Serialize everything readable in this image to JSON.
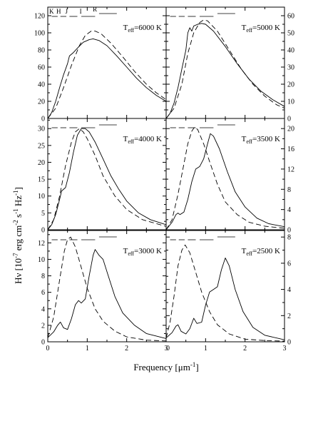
{
  "figure": {
    "ylabel_main": "Hν [10",
    "ylabel_exp1": "-7",
    "ylabel_units": " erg cm",
    "ylabel_exp2": "-2",
    "ylabel_s": " s",
    "ylabel_exp3": "-1",
    "ylabel_hz": " Hz",
    "ylabel_exp4": "-1",
    "ylabel_close": "]",
    "xlabel_main": "Frequency [μm",
    "xlabel_exp": "-1",
    "xlabel_close": "]",
    "band_labels": {
      "k": "K",
      "h": "H",
      "j": "J",
      "i": "I",
      "r": "R"
    }
  },
  "chart_data": [
    {
      "type": "line",
      "teff": "6000 K",
      "y_side": "left",
      "ylim": [
        0,
        130
      ],
      "yticks": [
        0,
        20,
        40,
        60,
        80,
        100,
        120
      ],
      "xlim": [
        0,
        3
      ],
      "xticks": [
        0,
        1,
        2,
        3
      ],
      "show_band_labels": true,
      "band_bars": [
        [
          0.38,
          0.95
        ],
        [
          1.05,
          1.55
        ]
      ],
      "series": [
        {
          "style": "solid",
          "points": [
            [
              0,
              0
            ],
            [
              0.1,
              7
            ],
            [
              0.2,
              20
            ],
            [
              0.3,
              36
            ],
            [
              0.4,
              51
            ],
            [
              0.5,
              64
            ],
            [
              0.55,
              73
            ],
            [
              0.65,
              77
            ],
            [
              0.75,
              82
            ],
            [
              0.9,
              89
            ],
            [
              1.05,
              92
            ],
            [
              1.15,
              93
            ],
            [
              1.3,
              91
            ],
            [
              1.5,
              85
            ],
            [
              1.75,
              73
            ],
            [
              2.0,
              60
            ],
            [
              2.25,
              47
            ],
            [
              2.5,
              36
            ],
            [
              2.75,
              27
            ],
            [
              3.0,
              20
            ]
          ]
        },
        {
          "style": "dashed",
          "points": [
            [
              0,
              0
            ],
            [
              0.2,
              12
            ],
            [
              0.4,
              36
            ],
            [
              0.6,
              62
            ],
            [
              0.8,
              85
            ],
            [
              0.95,
              97
            ],
            [
              1.1,
              102
            ],
            [
              1.2,
              102
            ],
            [
              1.35,
              99
            ],
            [
              1.6,
              88
            ],
            [
              1.9,
              72
            ],
            [
              2.2,
              55
            ],
            [
              2.5,
              40
            ],
            [
              2.75,
              30
            ],
            [
              3.0,
              22
            ]
          ]
        }
      ]
    },
    {
      "type": "line",
      "teff": "5000 K",
      "y_side": "right",
      "ylim": [
        0,
        65
      ],
      "yticks": [
        0,
        10,
        20,
        30,
        40,
        50,
        60
      ],
      "xlim": [
        0,
        3
      ],
      "xticks": [
        0,
        1,
        2,
        3
      ],
      "show_band_labels": false,
      "band_bars": [
        [
          0.38,
          0.95
        ],
        [
          1.05,
          1.55
        ]
      ],
      "series": [
        {
          "style": "solid",
          "points": [
            [
              0,
              0
            ],
            [
              0.1,
              3
            ],
            [
              0.2,
              9
            ],
            [
              0.3,
              18
            ],
            [
              0.4,
              29
            ],
            [
              0.5,
              40
            ],
            [
              0.55,
              50
            ],
            [
              0.6,
              53
            ],
            [
              0.65,
              51
            ],
            [
              0.7,
              54
            ],
            [
              0.8,
              55
            ],
            [
              0.9,
              55.5
            ],
            [
              1.0,
              55
            ],
            [
              1.2,
              51
            ],
            [
              1.5,
              42
            ],
            [
              1.8,
              32
            ],
            [
              2.1,
              23
            ],
            [
              2.4,
              16
            ],
            [
              2.7,
              11
            ],
            [
              3.0,
              7
            ]
          ]
        },
        {
          "style": "dashed",
          "points": [
            [
              0,
              0
            ],
            [
              0.2,
              6
            ],
            [
              0.4,
              20
            ],
            [
              0.55,
              38
            ],
            [
              0.7,
              50
            ],
            [
              0.85,
              56
            ],
            [
              0.95,
              57.5
            ],
            [
              1.05,
              57
            ],
            [
              1.3,
              51
            ],
            [
              1.6,
              40
            ],
            [
              1.9,
              29
            ],
            [
              2.2,
              20
            ],
            [
              2.5,
              13
            ],
            [
              2.8,
              8
            ],
            [
              3.0,
              6
            ]
          ]
        }
      ]
    },
    {
      "type": "line",
      "teff": "4000 K",
      "y_side": "left",
      "ylim": [
        0,
        33
      ],
      "yticks": [
        0,
        5,
        10,
        15,
        20,
        25,
        30
      ],
      "xlim": [
        0,
        3
      ],
      "xticks": [
        0,
        1,
        2,
        3
      ],
      "show_band_labels": false,
      "band_bars": [
        [
          0.38,
          0.95
        ],
        [
          1.05,
          1.55
        ]
      ],
      "series": [
        {
          "style": "solid",
          "points": [
            [
              0,
              0
            ],
            [
              0.1,
              1.5
            ],
            [
              0.2,
              4.5
            ],
            [
              0.3,
              9
            ],
            [
              0.35,
              11.5
            ],
            [
              0.45,
              12.5
            ],
            [
              0.55,
              17
            ],
            [
              0.65,
              23
            ],
            [
              0.75,
              28
            ],
            [
              0.85,
              30
            ],
            [
              0.95,
              30
            ],
            [
              1.05,
              29
            ],
            [
              1.2,
              26
            ],
            [
              1.4,
              21
            ],
            [
              1.6,
              16
            ],
            [
              1.8,
              12
            ],
            [
              2.0,
              8.5
            ],
            [
              2.3,
              5
            ],
            [
              2.6,
              3
            ],
            [
              3.0,
              1.5
            ]
          ]
        },
        {
          "style": "dashed",
          "points": [
            [
              0,
              0
            ],
            [
              0.15,
              3
            ],
            [
              0.3,
              10
            ],
            [
              0.45,
              19
            ],
            [
              0.6,
              26
            ],
            [
              0.7,
              29
            ],
            [
              0.8,
              30
            ],
            [
              0.9,
              29
            ],
            [
              1.0,
              27
            ],
            [
              1.2,
              22
            ],
            [
              1.4,
              16
            ],
            [
              1.7,
              10
            ],
            [
              2.0,
              6
            ],
            [
              2.4,
              3
            ],
            [
              3.0,
              1
            ]
          ]
        }
      ]
    },
    {
      "type": "line",
      "teff": "3500 K",
      "y_side": "right",
      "ylim": [
        0,
        22
      ],
      "yticks": [
        0,
        4,
        8,
        12,
        16,
        20
      ],
      "xlim": [
        0,
        3
      ],
      "xticks": [
        0,
        1,
        2,
        3
      ],
      "show_band_labels": false,
      "band_bars": [
        [
          0.38,
          0.95
        ],
        [
          1.05,
          1.55
        ]
      ],
      "series": [
        {
          "style": "solid",
          "points": [
            [
              0,
              0
            ],
            [
              0.15,
              1.5
            ],
            [
              0.25,
              3
            ],
            [
              0.3,
              3.3
            ],
            [
              0.35,
              3
            ],
            [
              0.45,
              3.5
            ],
            [
              0.55,
              6
            ],
            [
              0.65,
              9.5
            ],
            [
              0.75,
              12
            ],
            [
              0.85,
              12.5
            ],
            [
              0.95,
              14
            ],
            [
              1.05,
              17
            ],
            [
              1.12,
              19
            ],
            [
              1.2,
              18.5
            ],
            [
              1.35,
              16
            ],
            [
              1.55,
              11.5
            ],
            [
              1.75,
              7.5
            ],
            [
              2.0,
              4.5
            ],
            [
              2.3,
              2.3
            ],
            [
              2.6,
              1.2
            ],
            [
              3.0,
              0.6
            ]
          ]
        },
        {
          "style": "dashed",
          "points": [
            [
              0,
              0
            ],
            [
              0.15,
              2
            ],
            [
              0.3,
              7
            ],
            [
              0.45,
              13
            ],
            [
              0.55,
              17
            ],
            [
              0.65,
              19.5
            ],
            [
              0.72,
              20.3
            ],
            [
              0.8,
              19.8
            ],
            [
              0.95,
              17
            ],
            [
              1.1,
              13.5
            ],
            [
              1.3,
              9
            ],
            [
              1.5,
              5.5
            ],
            [
              1.8,
              3
            ],
            [
              2.1,
              1.5
            ],
            [
              2.5,
              0.7
            ],
            [
              3.0,
              0.3
            ]
          ]
        }
      ]
    },
    {
      "type": "line",
      "teff": "3000 K",
      "y_side": "left",
      "ylim": [
        0,
        13.5
      ],
      "yticks": [
        0,
        2,
        4,
        6,
        8,
        10,
        12
      ],
      "xlim": [
        0,
        3
      ],
      "xticks": [
        0,
        1,
        2,
        3
      ],
      "show_band_labels": false,
      "band_bars": [
        [
          0.38,
          0.95
        ],
        [
          1.05,
          1.55
        ]
      ],
      "series": [
        {
          "style": "solid",
          "points": [
            [
              0,
              0.5
            ],
            [
              0.15,
              1.2
            ],
            [
              0.25,
              2
            ],
            [
              0.32,
              2.4
            ],
            [
              0.4,
              1.7
            ],
            [
              0.5,
              1.5
            ],
            [
              0.6,
              2.8
            ],
            [
              0.7,
              4.5
            ],
            [
              0.78,
              5
            ],
            [
              0.85,
              4.7
            ],
            [
              0.95,
              5.2
            ],
            [
              1.05,
              8
            ],
            [
              1.15,
              10.5
            ],
            [
              1.2,
              11.2
            ],
            [
              1.3,
              10.5
            ],
            [
              1.4,
              10
            ],
            [
              1.5,
              8.5
            ],
            [
              1.7,
              5.5
            ],
            [
              1.9,
              3.5
            ],
            [
              2.2,
              2
            ],
            [
              2.5,
              1
            ],
            [
              3.0,
              0.4
            ]
          ]
        },
        {
          "style": "dashed",
          "points": [
            [
              0,
              0.5
            ],
            [
              0.15,
              3
            ],
            [
              0.3,
              7.5
            ],
            [
              0.42,
              11
            ],
            [
              0.5,
              12.4
            ],
            [
              0.58,
              12.7
            ],
            [
              0.7,
              11.5
            ],
            [
              0.85,
              9
            ],
            [
              1.0,
              6.5
            ],
            [
              1.2,
              4
            ],
            [
              1.4,
              2.5
            ],
            [
              1.7,
              1.3
            ],
            [
              2.0,
              0.6
            ],
            [
              2.5,
              0.2
            ],
            [
              3.0,
              0.1
            ]
          ]
        }
      ]
    },
    {
      "type": "line",
      "teff": "2500 K",
      "y_side": "right",
      "ylim": [
        0,
        8.5
      ],
      "yticks": [
        0,
        2,
        4,
        6,
        8
      ],
      "xlim": [
        0,
        3
      ],
      "xticks": [
        0,
        1,
        2,
        3
      ],
      "show_band_labels": false,
      "band_bars": [
        [
          0.38,
          0.95
        ],
        [
          1.05,
          1.55
        ]
      ],
      "series": [
        {
          "style": "solid",
          "points": [
            [
              0,
              0.3
            ],
            [
              0.15,
              0.7
            ],
            [
              0.25,
              1.2
            ],
            [
              0.3,
              1.3
            ],
            [
              0.38,
              0.8
            ],
            [
              0.5,
              0.6
            ],
            [
              0.6,
              1
            ],
            [
              0.7,
              1.8
            ],
            [
              0.78,
              1.4
            ],
            [
              0.9,
              1.5
            ],
            [
              1.0,
              2.8
            ],
            [
              1.1,
              3.8
            ],
            [
              1.2,
              4
            ],
            [
              1.3,
              4.2
            ],
            [
              1.4,
              5.5
            ],
            [
              1.5,
              6.4
            ],
            [
              1.6,
              5.8
            ],
            [
              1.75,
              4
            ],
            [
              1.95,
              2.3
            ],
            [
              2.2,
              1.1
            ],
            [
              2.5,
              0.5
            ],
            [
              3.0,
              0.15
            ]
          ]
        },
        {
          "style": "dashed",
          "points": [
            [
              0,
              0.3
            ],
            [
              0.1,
              1.5
            ],
            [
              0.2,
              3.5
            ],
            [
              0.3,
              5.8
            ],
            [
              0.4,
              7
            ],
            [
              0.48,
              7.4
            ],
            [
              0.6,
              6.8
            ],
            [
              0.75,
              5.3
            ],
            [
              0.9,
              3.8
            ],
            [
              1.1,
              2.3
            ],
            [
              1.3,
              1.3
            ],
            [
              1.6,
              0.6
            ],
            [
              2.0,
              0.2
            ],
            [
              2.5,
              0.1
            ],
            [
              3.0,
              0.05
            ]
          ]
        }
      ]
    }
  ]
}
